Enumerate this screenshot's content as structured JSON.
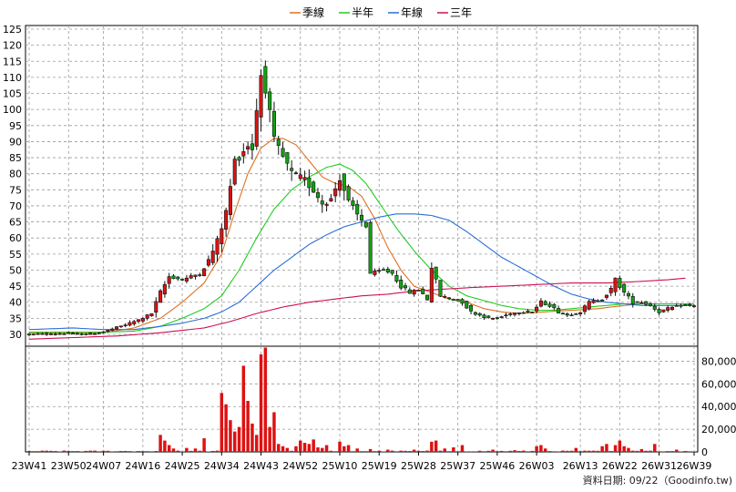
{
  "chart_data": {
    "type": "candlestick",
    "title": "",
    "legend_position": "top-center",
    "legend": [
      {
        "name": "季線",
        "color": "#e07020"
      },
      {
        "name": "半年",
        "color": "#22cc22"
      },
      {
        "name": "年線",
        "color": "#2a6fd6"
      },
      {
        "name": "三年",
        "color": "#cc1155"
      }
    ],
    "price_axis": {
      "position": "left",
      "ylim": [
        27,
        125
      ],
      "ticks": [
        30,
        35,
        40,
        45,
        50,
        55,
        60,
        65,
        70,
        75,
        80,
        85,
        90,
        95,
        100,
        105,
        110,
        115,
        120,
        125
      ]
    },
    "volume_axis": {
      "position": "right",
      "ylim": [
        0,
        90000
      ],
      "ticks": [
        "0",
        "20,000",
        "40,000",
        "60,000",
        "80,000"
      ],
      "tick_values": [
        0,
        20000,
        40000,
        60000,
        80000
      ]
    },
    "grid": true,
    "x_ticks": [
      "23W41",
      "23W50",
      "24W07",
      "24W16",
      "24W25",
      "24W34",
      "24W43",
      "24W52",
      "25W10",
      "25W19",
      "25W28",
      "25W37",
      "25W46",
      "26W03",
      "26W13",
      "26W22",
      "26W31",
      "26W39"
    ],
    "x_tick_index": [
      0,
      9,
      17,
      26,
      35,
      44,
      53,
      62,
      71,
      80,
      89,
      98,
      107,
      116,
      126,
      135,
      144,
      152
    ],
    "weeks": 153,
    "anchors": [
      [
        0,
        30
      ],
      [
        8,
        30.3
      ],
      [
        13,
        30
      ],
      [
        17,
        30.8
      ],
      [
        22,
        33
      ],
      [
        25,
        34.5
      ],
      [
        28,
        36.5
      ],
      [
        30,
        43
      ],
      [
        32,
        48
      ],
      [
        35,
        47
      ],
      [
        39,
        49
      ],
      [
        41,
        53
      ],
      [
        43,
        59
      ],
      [
        45,
        68
      ],
      [
        47,
        84
      ],
      [
        50,
        89
      ],
      [
        51,
        88
      ],
      [
        52,
        100
      ],
      [
        53,
        111
      ],
      [
        54,
        107
      ],
      [
        56,
        90
      ],
      [
        58,
        85
      ],
      [
        60,
        80
      ],
      [
        63,
        78
      ],
      [
        65,
        75
      ],
      [
        67,
        71
      ],
      [
        69,
        72
      ],
      [
        71,
        79
      ],
      [
        73,
        71
      ],
      [
        75,
        67
      ],
      [
        77,
        64
      ],
      [
        78,
        49
      ],
      [
        81,
        50
      ],
      [
        83,
        49
      ],
      [
        85,
        45
      ],
      [
        87,
        43
      ],
      [
        89,
        44
      ],
      [
        91,
        41
      ],
      [
        92,
        51
      ],
      [
        94,
        42
      ],
      [
        97,
        41
      ],
      [
        99,
        40
      ],
      [
        101,
        37
      ],
      [
        103,
        36
      ],
      [
        105,
        35
      ],
      [
        107,
        35
      ],
      [
        109,
        36
      ],
      [
        112,
        37
      ],
      [
        115,
        37
      ],
      [
        117,
        40
      ],
      [
        119,
        39
      ],
      [
        121,
        37
      ],
      [
        123,
        36
      ],
      [
        126,
        37
      ],
      [
        128,
        40
      ],
      [
        131,
        41
      ],
      [
        133,
        44
      ],
      [
        134,
        47
      ],
      [
        136,
        43
      ],
      [
        138,
        40
      ],
      [
        140,
        40
      ],
      [
        142,
        39
      ],
      [
        144,
        37
      ],
      [
        146,
        38
      ],
      [
        149,
        39
      ],
      [
        152,
        39
      ]
    ],
    "ma_series": [
      {
        "name": "季線",
        "color": "#e07020",
        "points": [
          [
            0,
            30.5
          ],
          [
            17,
            30.5
          ],
          [
            24,
            32
          ],
          [
            30,
            35
          ],
          [
            35,
            40
          ],
          [
            40,
            46
          ],
          [
            44,
            55
          ],
          [
            47,
            68
          ],
          [
            50,
            80
          ],
          [
            53,
            88
          ],
          [
            56,
            91
          ],
          [
            58,
            91
          ],
          [
            61,
            89
          ],
          [
            64,
            84
          ],
          [
            67,
            79
          ],
          [
            70,
            77
          ],
          [
            73,
            76
          ],
          [
            76,
            73
          ],
          [
            79,
            66
          ],
          [
            82,
            57
          ],
          [
            85,
            50
          ],
          [
            88,
            45
          ],
          [
            92,
            43
          ],
          [
            96,
            41
          ],
          [
            100,
            40
          ],
          [
            104,
            38
          ],
          [
            108,
            37
          ],
          [
            112,
            36.5
          ],
          [
            118,
            37
          ],
          [
            124,
            37.5
          ],
          [
            130,
            38
          ],
          [
            136,
            39
          ],
          [
            140,
            39.5
          ],
          [
            146,
            39.5
          ],
          [
            152,
            39.5
          ]
        ]
      },
      {
        "name": "半年",
        "color": "#22cc22",
        "points": [
          [
            0,
            30.7
          ],
          [
            17,
            30.7
          ],
          [
            24,
            31
          ],
          [
            30,
            32.5
          ],
          [
            35,
            35
          ],
          [
            40,
            38
          ],
          [
            44,
            42
          ],
          [
            48,
            50
          ],
          [
            52,
            60
          ],
          [
            56,
            69
          ],
          [
            60,
            75
          ],
          [
            64,
            79
          ],
          [
            68,
            82
          ],
          [
            71,
            83
          ],
          [
            74,
            81
          ],
          [
            77,
            77
          ],
          [
            80,
            71
          ],
          [
            84,
            63
          ],
          [
            88,
            56
          ],
          [
            92,
            50
          ],
          [
            96,
            45
          ],
          [
            100,
            42
          ],
          [
            104,
            40.5
          ],
          [
            108,
            39
          ],
          [
            112,
            38
          ],
          [
            116,
            37.5
          ],
          [
            120,
            37.5
          ],
          [
            124,
            38
          ],
          [
            128,
            38.5
          ],
          [
            132,
            39
          ],
          [
            136,
            39.5
          ],
          [
            140,
            39.5
          ],
          [
            146,
            39.5
          ],
          [
            152,
            39.5
          ]
        ]
      },
      {
        "name": "年線",
        "color": "#2a6fd6",
        "points": [
          [
            0,
            31.5
          ],
          [
            10,
            32
          ],
          [
            17,
            31.5
          ],
          [
            24,
            31.5
          ],
          [
            30,
            32.5
          ],
          [
            35,
            33.5
          ],
          [
            40,
            35
          ],
          [
            44,
            37
          ],
          [
            48,
            40
          ],
          [
            52,
            45
          ],
          [
            56,
            50
          ],
          [
            60,
            54
          ],
          [
            64,
            58
          ],
          [
            68,
            61
          ],
          [
            72,
            63.5
          ],
          [
            76,
            65
          ],
          [
            80,
            66.5
          ],
          [
            84,
            67.5
          ],
          [
            88,
            67.5
          ],
          [
            92,
            67
          ],
          [
            96,
            65.5
          ],
          [
            100,
            62
          ],
          [
            104,
            58
          ],
          [
            108,
            54
          ],
          [
            112,
            51
          ],
          [
            116,
            48
          ],
          [
            120,
            45
          ],
          [
            124,
            42.5
          ],
          [
            128,
            41
          ],
          [
            132,
            40
          ],
          [
            136,
            39.5
          ],
          [
            140,
            39
          ],
          [
            146,
            39
          ],
          [
            152,
            39
          ]
        ]
      },
      {
        "name": "三年",
        "color": "#cc1155",
        "points": [
          [
            0,
            28.5
          ],
          [
            10,
            29
          ],
          [
            20,
            29.5
          ],
          [
            30,
            30.5
          ],
          [
            40,
            32
          ],
          [
            46,
            34
          ],
          [
            52,
            36.5
          ],
          [
            58,
            38.5
          ],
          [
            64,
            40
          ],
          [
            70,
            41
          ],
          [
            76,
            42
          ],
          [
            82,
            42.5
          ],
          [
            88,
            43.5
          ],
          [
            94,
            44
          ],
          [
            100,
            44.5
          ],
          [
            108,
            45
          ],
          [
            116,
            45.5
          ],
          [
            124,
            46
          ],
          [
            132,
            46
          ],
          [
            140,
            46.5
          ],
          [
            146,
            47
          ],
          [
            150,
            47.5
          ]
        ]
      }
    ],
    "volume_spikes": [
      [
        30,
        15000
      ],
      [
        31,
        10000
      ],
      [
        32,
        6000
      ],
      [
        33,
        3000
      ],
      [
        36,
        3500
      ],
      [
        38,
        3000
      ],
      [
        40,
        12000
      ],
      [
        44,
        52000
      ],
      [
        45,
        42000
      ],
      [
        46,
        28000
      ],
      [
        47,
        18000
      ],
      [
        48,
        22000
      ],
      [
        49,
        76000
      ],
      [
        50,
        45000
      ],
      [
        51,
        25000
      ],
      [
        52,
        15000
      ],
      [
        53,
        86000
      ],
      [
        54,
        92000
      ],
      [
        55,
        22000
      ],
      [
        56,
        35000
      ],
      [
        57,
        7000
      ],
      [
        58,
        5000
      ],
      [
        59,
        3500
      ],
      [
        61,
        5000
      ],
      [
        62,
        10000
      ],
      [
        63,
        8000
      ],
      [
        64,
        7000
      ],
      [
        65,
        11000
      ],
      [
        66,
        4000
      ],
      [
        67,
        3500
      ],
      [
        68,
        6000
      ],
      [
        71,
        9000
      ],
      [
        72,
        5000
      ],
      [
        73,
        6000
      ],
      [
        75,
        3000
      ],
      [
        78,
        2500
      ],
      [
        82,
        2000
      ],
      [
        88,
        2000
      ],
      [
        92,
        9000
      ],
      [
        93,
        10000
      ],
      [
        95,
        3000
      ],
      [
        97,
        4000
      ],
      [
        99,
        6000
      ],
      [
        106,
        2000
      ],
      [
        111,
        1500
      ],
      [
        116,
        5000
      ],
      [
        117,
        6000
      ],
      [
        118,
        3000
      ],
      [
        125,
        3500
      ],
      [
        131,
        5000
      ],
      [
        132,
        7000
      ],
      [
        134,
        6000
      ],
      [
        135,
        10000
      ],
      [
        136,
        5000
      ],
      [
        137,
        3500
      ],
      [
        140,
        2500
      ],
      [
        143,
        7000
      ],
      [
        148,
        2000
      ]
    ]
  },
  "footer_credit": "資料日期: 09/22（Goodinfo.tw)"
}
